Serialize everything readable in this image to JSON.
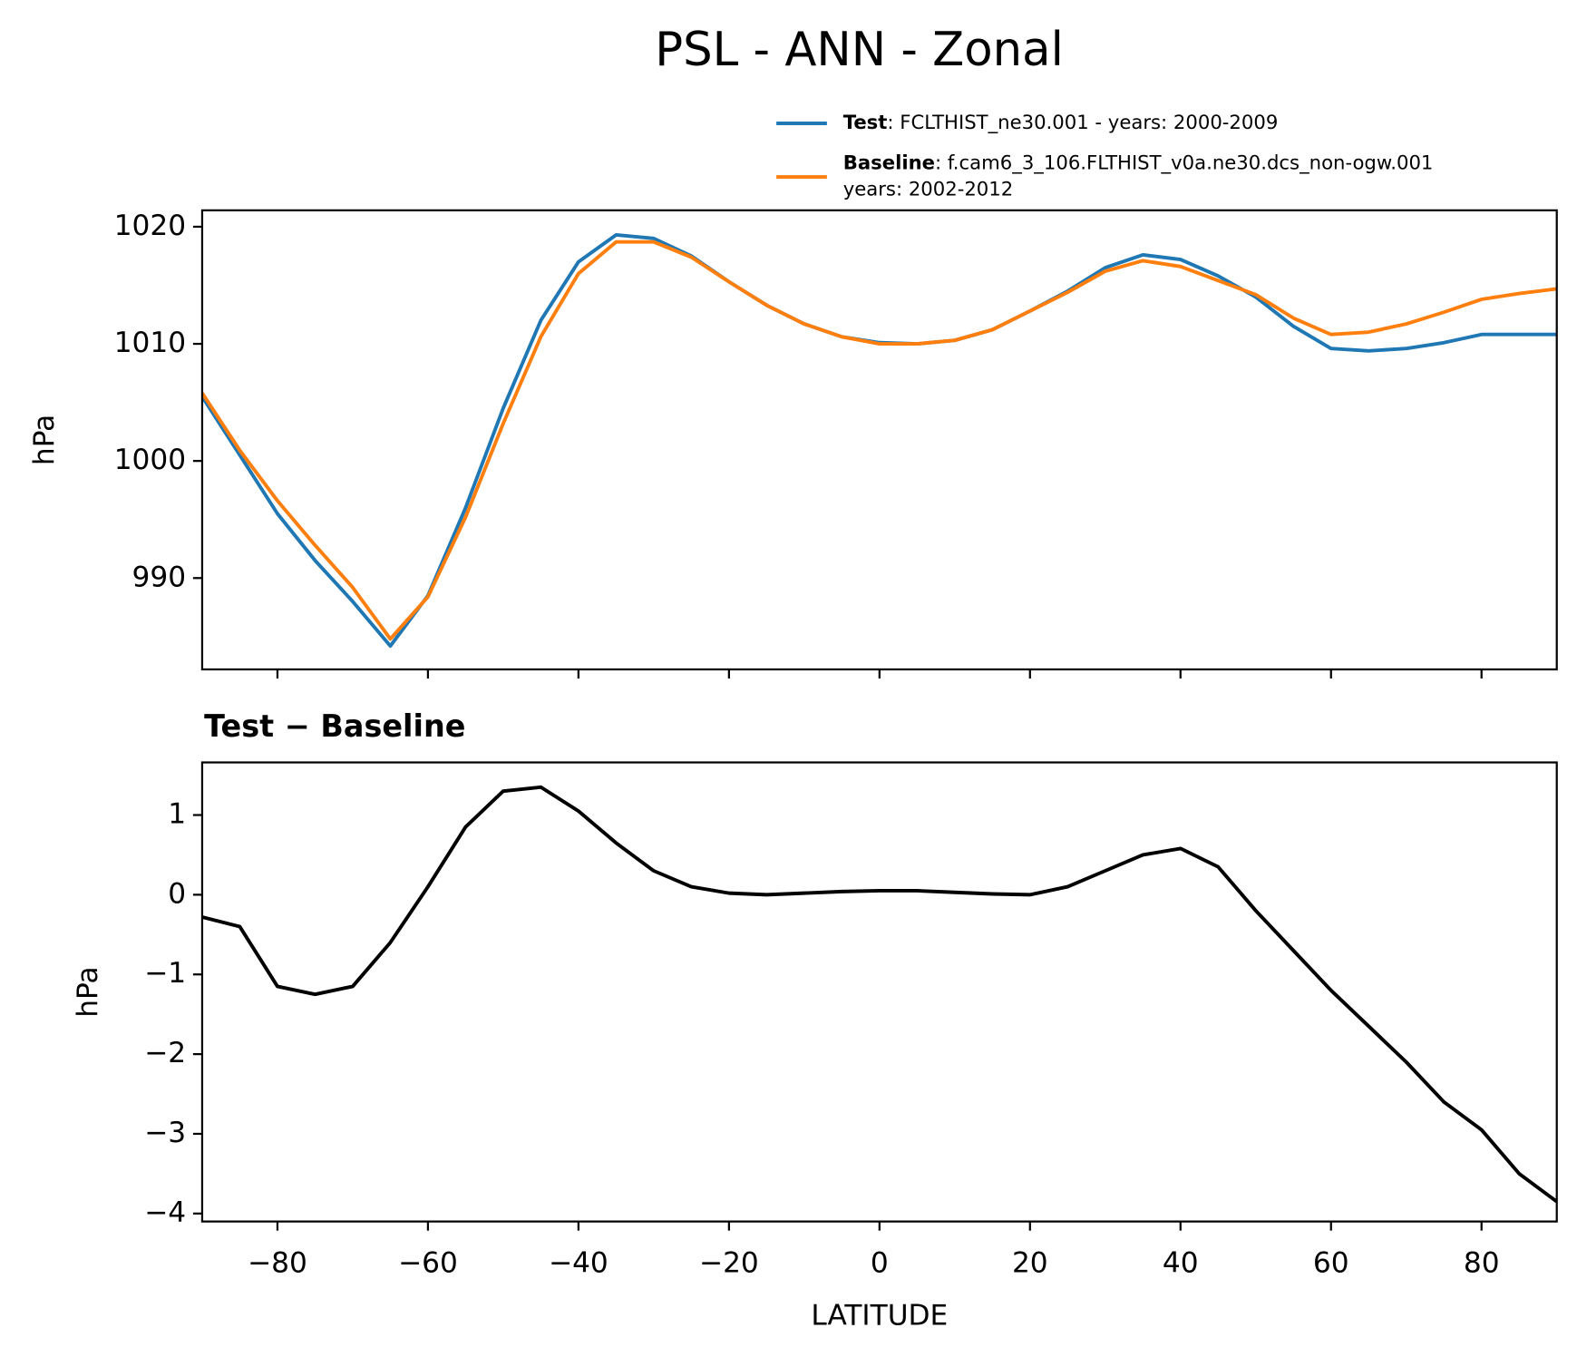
{
  "chart_data": [
    {
      "type": "line",
      "title": "PSL - ANN - Zonal",
      "ylabel": "hPa",
      "show_xtick_labels": false,
      "x": [
        -90,
        -85,
        -80,
        -75,
        -70,
        -65,
        -60,
        -55,
        -50,
        -45,
        -40,
        -35,
        -30,
        -25,
        -20,
        -15,
        -10,
        -5,
        0,
        5,
        10,
        15,
        20,
        25,
        30,
        35,
        40,
        45,
        50,
        55,
        60,
        65,
        70,
        75,
        80,
        85,
        90
      ],
      "series": [
        {
          "name": "Test",
          "description": [
            ": FCLTHIST_ne30.001 - years: 2000-2009"
          ],
          "color": "#1f77b4",
          "values": [
            1005.5,
            1000.5,
            995.5,
            991.5,
            988,
            984.2,
            988.5,
            996,
            1004.5,
            1012,
            1017,
            1019.3,
            1019,
            1017.5,
            1015.3,
            1013.3,
            1011.7,
            1010.6,
            1010.1,
            1010.0,
            1010.3,
            1011.2,
            1012.8,
            1014.5,
            1016.5,
            1017.6,
            1017.2,
            1015.8,
            1014,
            1011.5,
            1009.6,
            1009.4,
            1009.6,
            1010.1,
            1010.8,
            1010.8,
            1010.8
          ]
        },
        {
          "name": "Baseline",
          "description": [
            ": f.cam6_3_106.FLTHIST_v0a.ne30.dcs_non-ogw.001",
            "years: 2002-2012"
          ],
          "color": "#ff7f0e",
          "values": [
            1005.8,
            1000.9,
            996.6,
            992.8,
            989.2,
            984.8,
            988.4,
            995.2,
            1003.2,
            1010.6,
            1016,
            1018.7,
            1018.7,
            1017.4,
            1015.3,
            1013.3,
            1011.7,
            1010.6,
            1010.0,
            1010.0,
            1010.3,
            1011.2,
            1012.8,
            1014.4,
            1016.2,
            1017.1,
            1016.6,
            1015.4,
            1014.2,
            1012.2,
            1010.8,
            1011.0,
            1011.7,
            1012.7,
            1013.8,
            1014.3,
            1014.7
          ]
        }
      ],
      "xlim": [
        -90,
        90
      ],
      "xticks": [
        -80,
        -60,
        -40,
        -20,
        0,
        20,
        40,
        60,
        80
      ],
      "ylim": [
        982.2,
        1021.4
      ],
      "yticks": [
        990,
        1000,
        1010,
        1020
      ]
    },
    {
      "type": "line",
      "title": "Test − Baseline",
      "ylabel": "hPa",
      "xlabel": "LATITUDE",
      "show_xtick_labels": true,
      "x": [
        -90,
        -85,
        -80,
        -75,
        -70,
        -65,
        -60,
        -55,
        -50,
        -45,
        -40,
        -35,
        -30,
        -25,
        -20,
        -15,
        -10,
        -5,
        0,
        5,
        10,
        15,
        20,
        25,
        30,
        35,
        40,
        45,
        50,
        55,
        60,
        65,
        70,
        75,
        80,
        85,
        90
      ],
      "series": [
        {
          "color": "#000000",
          "values": [
            -0.28,
            -0.4,
            -1.15,
            -1.25,
            -1.15,
            -0.6,
            0.1,
            0.85,
            1.3,
            1.35,
            1.05,
            0.65,
            0.3,
            0.1,
            0.02,
            0.0,
            0.02,
            0.04,
            0.05,
            0.05,
            0.03,
            0.01,
            0.0,
            0.1,
            0.3,
            0.5,
            0.58,
            0.35,
            -0.2,
            -0.7,
            -1.2,
            -1.65,
            -2.1,
            -2.6,
            -2.95,
            -3.5,
            -3.85
          ]
        }
      ],
      "xlim": [
        -90,
        90
      ],
      "xticks": [
        {
          "value": -80,
          "label": "−80"
        },
        {
          "value": -60,
          "label": "−60"
        },
        {
          "value": -40,
          "label": "−40"
        },
        {
          "value": -20,
          "label": "−20"
        },
        0,
        20,
        40,
        60,
        80
      ],
      "ylim": [
        -4.1,
        1.66
      ],
      "yticks": [
        {
          "value": -4,
          "label": "−4"
        },
        {
          "value": -3,
          "label": "−3"
        },
        {
          "value": -2,
          "label": "−2"
        },
        {
          "value": -1,
          "label": "−1"
        },
        0,
        1
      ]
    }
  ]
}
